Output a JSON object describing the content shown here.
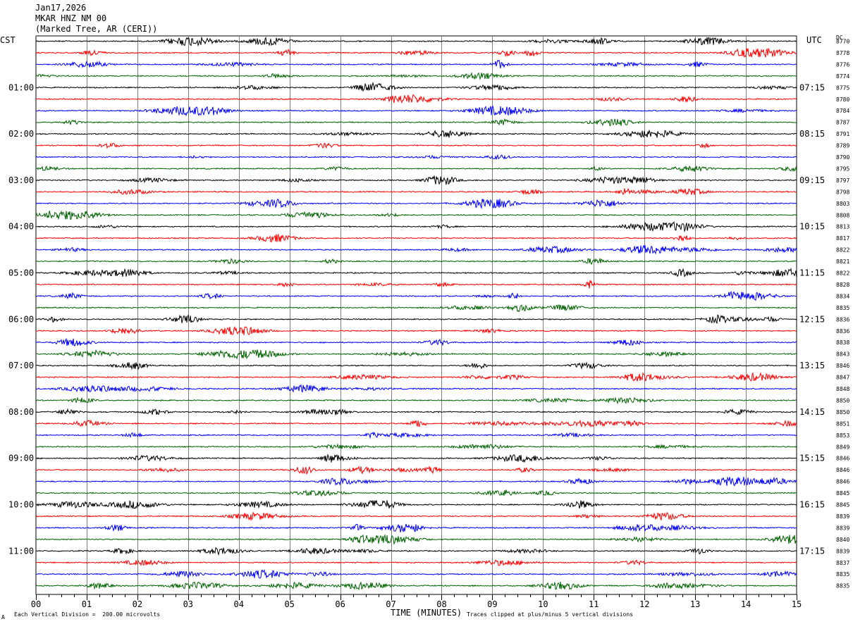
{
  "header": {
    "date": "Jan17,2026",
    "station": "MKAR HNZ NM 00",
    "location": "(Marked Tree, AR (CERI))"
  },
  "left_timezone": "CST",
  "right_timezone": "UTC",
  "dc_label": "DC",
  "footer": {
    "scale_note": "Each Vertical Division =  200.00 microvolts",
    "clip_note": "Traces clipped at plus/minus 5 vertical divisions",
    "corner_mark": "A"
  },
  "colors": {
    "trace_cycle": [
      "#000000",
      "#ff0000",
      "#0000ff",
      "#006400"
    ],
    "grid": "#808080",
    "text": "#000000"
  },
  "chart_data": {
    "type": "line",
    "xlabel": "TIME (MINUTES)",
    "xlim": [
      0,
      15
    ],
    "x_ticks": [
      "00",
      "01",
      "02",
      "03",
      "04",
      "05",
      "06",
      "07",
      "08",
      "09",
      "10",
      "11",
      "12",
      "13",
      "14",
      "15"
    ],
    "trace_count": 48,
    "left_hour_labels": [
      "01:00",
      "02:00",
      "03:00",
      "04:00",
      "05:00",
      "06:00",
      "07:00",
      "08:00",
      "09:00",
      "10:00",
      "11:00"
    ],
    "right_hour_labels": [
      "07:15",
      "08:15",
      "09:15",
      "10:15",
      "11:15",
      "12:15",
      "13:15",
      "14:15",
      "15:15",
      "16:15",
      "17:15"
    ],
    "dc_offsets": [
      "8770",
      "8778",
      "8776",
      "8774",
      "8775",
      "8780",
      "8784",
      "8787",
      "8791",
      "8789",
      "8790",
      "8795",
      "8797",
      "8798",
      "8803",
      "8808",
      "8813",
      "8817",
      "8822",
      "8821",
      "8822",
      "8828",
      "8834",
      "8835",
      "8836",
      "8836",
      "8838",
      "8843",
      "8846",
      "8847",
      "8848",
      "8850",
      "8850",
      "8851",
      "8853",
      "8849",
      "8846",
      "8846",
      "8846",
      "8845",
      "8845",
      "8839",
      "8839",
      "8840",
      "8839",
      "8837",
      "8835",
      "8835"
    ],
    "grid": true
  }
}
